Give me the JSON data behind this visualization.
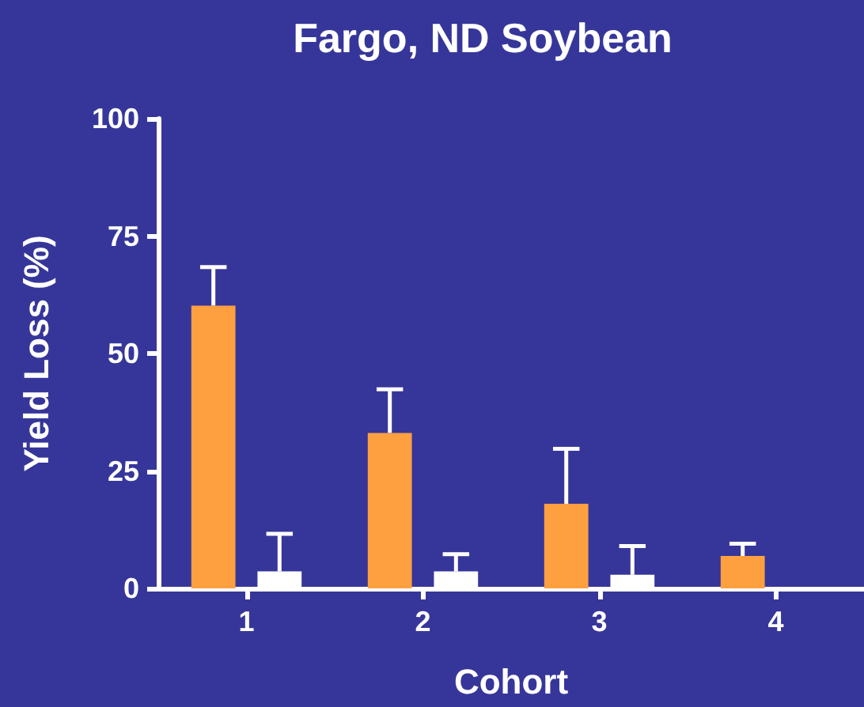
{
  "chart_data": {
    "type": "bar",
    "title": "Fargo, ND Soybean",
    "xlabel": "Cohort",
    "ylabel": "Yield Loss (%)",
    "categories": [
      "1",
      "2",
      "3",
      "4"
    ],
    "series": [
      {
        "color": "#ffa040",
        "values": [
          60.2,
          33.1,
          18.0,
          6.9
        ],
        "errors": [
          [
            60.2,
            68.4
          ],
          [
            33.1,
            42.4
          ],
          [
            18.0,
            29.7
          ],
          [
            6.9,
            9.5
          ]
        ]
      },
      {
        "color": "#ffffff",
        "values": [
          3.6,
          3.6,
          2.9,
          null
        ],
        "errors": [
          [
            3.6,
            11.6
          ],
          [
            3.6,
            7.3
          ],
          [
            2.9,
            9.0
          ],
          null
        ]
      }
    ],
    "ylim": [
      0,
      100
    ],
    "yticks": [
      0,
      25,
      50,
      75,
      100
    ]
  }
}
